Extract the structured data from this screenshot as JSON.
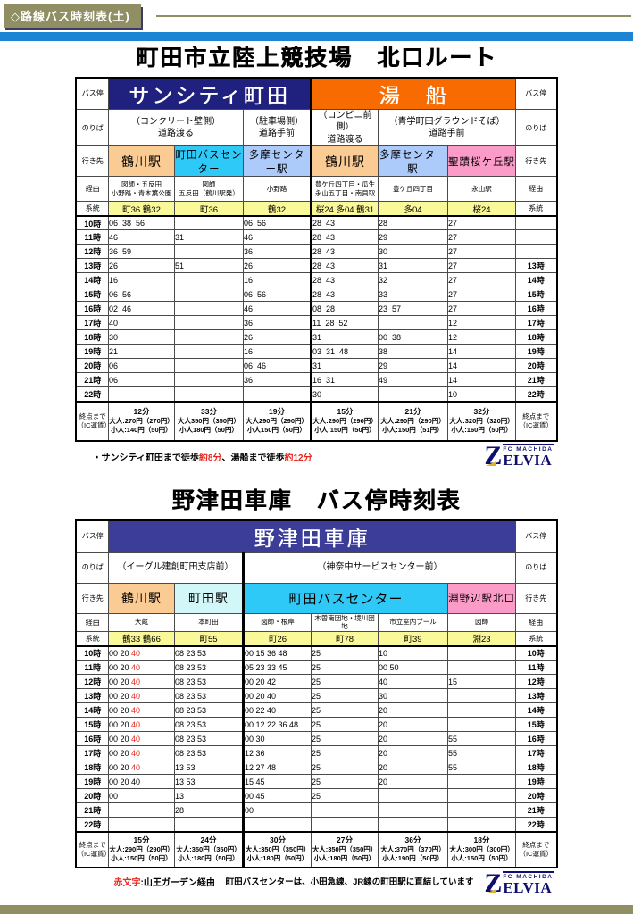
{
  "colors": {
    "navy": "#20207f",
    "orange": "#f76b00",
    "indigo": "#3c3c99",
    "peach": "#fbcb94",
    "cyan": "#2fc9f7",
    "paleCyan": "#d2f7f9",
    "lightBlue": "#accafa",
    "pink": "#fb9bc8",
    "yellow": "#f9f99a",
    "khaki": "#8f8f63",
    "blue": "#1b84d4",
    "red": "#e8281e"
  },
  "header": {
    "tag": "◇路線バス時刻表(土)"
  },
  "row_labels": {
    "stop": "バス停",
    "noriba": "のりば",
    "dest": "行き先",
    "via": "経由",
    "line": "系統",
    "fare": "終点まで\n（IC運賃）"
  },
  "logo": {
    "z": "Z",
    "fc": "FC MACHIDA",
    "name": "ELVIA"
  },
  "table1": {
    "title": "町田市立陸上競技場　北口ルート",
    "stops": [
      {
        "label": "サンシティ町田",
        "span": 3,
        "bg": "navy"
      },
      {
        "label": "湯　船",
        "span": 3,
        "bg": "orange"
      }
    ],
    "noriba": [
      {
        "label": "（コンクリート壁側）\n道路渡る",
        "span": 2
      },
      {
        "label": "（駐車場側）\n道路手前",
        "span": 1
      },
      {
        "label": "（コンビニ前側）\n道路渡る",
        "span": 1
      },
      {
        "label": "（青学町田グラウンドそば）\n道路手前",
        "span": 2
      }
    ],
    "destinations": [
      {
        "label": "鶴川駅",
        "span": 1,
        "bg": "peach"
      },
      {
        "label": "町田バスセンター",
        "span": 1,
        "bg": "cyan"
      },
      {
        "label": "多摩センター駅",
        "span": 1,
        "bg": "lightBlue"
      },
      {
        "label": "鶴川駅",
        "span": 1,
        "bg": "peach"
      },
      {
        "label": "多摩センター駅",
        "span": 1,
        "bg": "lightBlue"
      },
      {
        "label": "聖蹟桜ケ丘駅",
        "span": 1,
        "bg": "pink"
      }
    ],
    "via": [
      "図師・五反田\n小野路・青木葉公園",
      "図師\n五反田（鶴川駅発）",
      "小野路",
      "豊ケ丘四丁目・瓜生\n永山五丁目・南貝取",
      "豊ケ丘四丁目",
      "永山駅"
    ],
    "lines": [
      "町36 鶴32",
      "町36",
      "鶴32",
      "桜24 多04 鶴31",
      "多04",
      "桜24"
    ],
    "hours": [
      {
        "label": "10時",
        "right": "",
        "cells": [
          "06  38  56",
          "",
          "06  56",
          "28  43",
          "28",
          "27"
        ]
      },
      {
        "label": "11時",
        "right": "",
        "cells": [
          "46",
          "31",
          "46",
          "28  43",
          "29",
          "27"
        ]
      },
      {
        "label": "12時",
        "right": "",
        "cells": [
          "36  59",
          "",
          "36",
          "28  43",
          "30",
          "27"
        ]
      },
      {
        "label": "13時",
        "right": "13時",
        "cells": [
          "26",
          "51",
          "26",
          "28  43",
          "31",
          "27"
        ]
      },
      {
        "label": "14時",
        "right": "14時",
        "cells": [
          "16",
          "",
          "16",
          "28  43",
          "32",
          "27"
        ]
      },
      {
        "label": "15時",
        "right": "15時",
        "cells": [
          "06  56",
          "",
          "06  56",
          "28  43",
          "33",
          "27"
        ]
      },
      {
        "label": "16時",
        "right": "16時",
        "cells": [
          "02  46",
          "",
          "46",
          "08  28",
          "23  57",
          "27"
        ]
      },
      {
        "label": "17時",
        "right": "17時",
        "cells": [
          "40",
          "",
          "36",
          "11  28  52",
          "",
          "12"
        ]
      },
      {
        "label": "18時",
        "right": "18時",
        "cells": [
          "30",
          "",
          "26",
          "31",
          "00  38",
          "12"
        ]
      },
      {
        "label": "19時",
        "right": "19時",
        "cells": [
          "21",
          "",
          "16",
          "03  31  48",
          "38",
          "14"
        ]
      },
      {
        "label": "20時",
        "right": "20時",
        "cells": [
          "06",
          "",
          "06  46",
          "31",
          "29",
          "14"
        ]
      },
      {
        "label": "21時",
        "right": "21時",
        "cells": [
          "06",
          "",
          "36",
          "16  31",
          "49",
          "14"
        ]
      },
      {
        "label": "22時",
        "right": "22時",
        "cells": [
          "",
          "",
          "",
          "30",
          "",
          "10"
        ]
      }
    ],
    "fares": [
      [
        "12分",
        "大人:270円（270円）",
        "小人:140円（50円）"
      ],
      [
        "33分",
        "大人350円（350円）",
        "小人180円（50円）"
      ],
      [
        "19分",
        "大人290円（290円）",
        "小人150円（50円）"
      ],
      [
        "15分",
        "大人:290円（290円）",
        "小人:150円（50円）"
      ],
      [
        "21分",
        "大人:290円（290円）",
        "小人:150円（51円）"
      ],
      [
        "32分",
        "大人:320円（320円）",
        "小人:160円（50円）"
      ]
    ],
    "note": [
      "・サンシティ町田まで徒歩",
      {
        "red": "約8分"
      },
      "、湯船まで徒歩",
      {
        "red": "約12分"
      }
    ]
  },
  "table2": {
    "title": "野津田車庫　バス停時刻表",
    "stops": [
      {
        "label": "野津田車庫",
        "span": 6,
        "bg": "indigo"
      }
    ],
    "noriba": [
      {
        "label": "（イーグル建創町田支店前）",
        "span": 2
      },
      {
        "label": "（神奈中サービスセンター前）",
        "span": 4
      }
    ],
    "destinations": [
      {
        "label": "鶴川駅",
        "span": 1,
        "bg": "peach"
      },
      {
        "label": "町田駅",
        "span": 1,
        "bg": "paleCyan"
      },
      {
        "label": "町田バスセンター",
        "span": 3,
        "bg": "cyan"
      },
      {
        "label": "淵野辺駅北口",
        "span": 1,
        "bg": "pink"
      }
    ],
    "via": [
      "大蔵",
      "本町田",
      "図師・根岸",
      "木曽南団地・境川団地",
      "市立室内プール",
      "図師"
    ],
    "lines": [
      "鶴33 鶴66",
      "町55",
      "町26",
      "町78",
      "町39",
      "淵23"
    ],
    "hours": [
      {
        "label": "10時",
        "right": "10時",
        "cells": [
          [
            "00 20 ",
            {
              "red": "40"
            }
          ],
          "08 23 53",
          "00 15 36 48",
          "25",
          "10",
          ""
        ]
      },
      {
        "label": "11時",
        "right": "11時",
        "cells": [
          [
            "00 20 ",
            {
              "red": "40"
            }
          ],
          "08 23 53",
          "05 23 33 45",
          "25",
          "00 50",
          ""
        ]
      },
      {
        "label": "12時",
        "right": "12時",
        "cells": [
          [
            "00 20 ",
            {
              "red": "40"
            }
          ],
          "08 23 53",
          "00 20 42",
          "25",
          "40",
          "15"
        ]
      },
      {
        "label": "13時",
        "right": "13時",
        "cells": [
          [
            "00 20 ",
            {
              "red": "40"
            }
          ],
          "08 23 53",
          "00 20 40",
          "25",
          "30",
          ""
        ]
      },
      {
        "label": "14時",
        "right": "14時",
        "cells": [
          [
            "00 20 ",
            {
              "red": "40"
            }
          ],
          "08 23 53",
          "00 22 40",
          "25",
          "20",
          ""
        ]
      },
      {
        "label": "15時",
        "right": "15時",
        "cells": [
          [
            "00 20 ",
            {
              "red": "40"
            }
          ],
          "08 23 53",
          "00 12 22 36 48",
          "25",
          "20",
          ""
        ]
      },
      {
        "label": "16時",
        "right": "16時",
        "cells": [
          [
            "00 20 ",
            {
              "red": "40"
            }
          ],
          "08 23 53",
          "00 30",
          "25",
          "20",
          "55"
        ]
      },
      {
        "label": "17時",
        "right": "17時",
        "cells": [
          [
            "00 20 ",
            {
              "red": "40"
            }
          ],
          "08 23 53",
          "12 36",
          "25",
          "20",
          "55"
        ]
      },
      {
        "label": "18時",
        "right": "18時",
        "cells": [
          [
            "00 20 ",
            {
              "red": "40"
            }
          ],
          "13 53",
          "12 27 48",
          "25",
          "20",
          "55"
        ]
      },
      {
        "label": "19時",
        "right": "19時",
        "cells": [
          "00 20 40",
          "13 53",
          "15 45",
          "25",
          "20",
          ""
        ]
      },
      {
        "label": "20時",
        "right": "20時",
        "cells": [
          "00",
          "13",
          "00 45",
          "25",
          "",
          ""
        ]
      },
      {
        "label": "21時",
        "right": "21時",
        "cells": [
          "",
          "28",
          "00",
          "",
          "",
          ""
        ]
      },
      {
        "label": "22時",
        "right": "22時",
        "cells": [
          "",
          "",
          "",
          "",
          "",
          ""
        ]
      }
    ],
    "fares": [
      [
        "15分",
        "大人:290円（290円）",
        "小人:150円（50円）"
      ],
      [
        "24分",
        "大人:350円（350円）",
        "小人:180円（50円）"
      ],
      [
        "30分",
        "大人:350円（350円）",
        "小人:180円（50円）"
      ],
      [
        "27分",
        "大人:350円（350円）",
        "小人:180円（50円）"
      ],
      [
        "36分",
        "大人:370円（370円）",
        "小人:190円（50円）"
      ],
      [
        "18分",
        "大人:300円（300円）",
        "小人:150円（50円）"
      ]
    ],
    "notes": {
      "legend": [
        {
          "red": "赤文字"
        },
        ":山王ガーデン経由"
      ],
      "info": "町田バスセンターは、小田急線、JR線の町田駅に直結しています"
    }
  }
}
